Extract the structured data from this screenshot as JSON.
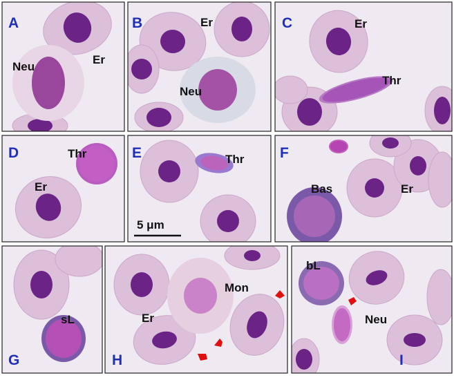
{
  "panels": [
    {
      "letter": "A",
      "labels": [
        "Neu",
        "Er"
      ]
    },
    {
      "letter": "B",
      "labels": [
        "Er",
        "Neu"
      ]
    },
    {
      "letter": "C",
      "labels": [
        "Er",
        "Thr"
      ]
    },
    {
      "letter": "D",
      "labels": [
        "Thr",
        "Er"
      ]
    },
    {
      "letter": "E",
      "labels": [
        "Thr"
      ]
    },
    {
      "letter": "F",
      "labels": [
        "Bas",
        "Er"
      ]
    },
    {
      "letter": "G",
      "labels": [
        "sL"
      ]
    },
    {
      "letter": "H",
      "labels": [
        "Mon",
        "Er"
      ]
    },
    {
      "letter": "I",
      "labels": [
        "bL",
        "Neu"
      ]
    }
  ],
  "scale_bar": "5 μm"
}
